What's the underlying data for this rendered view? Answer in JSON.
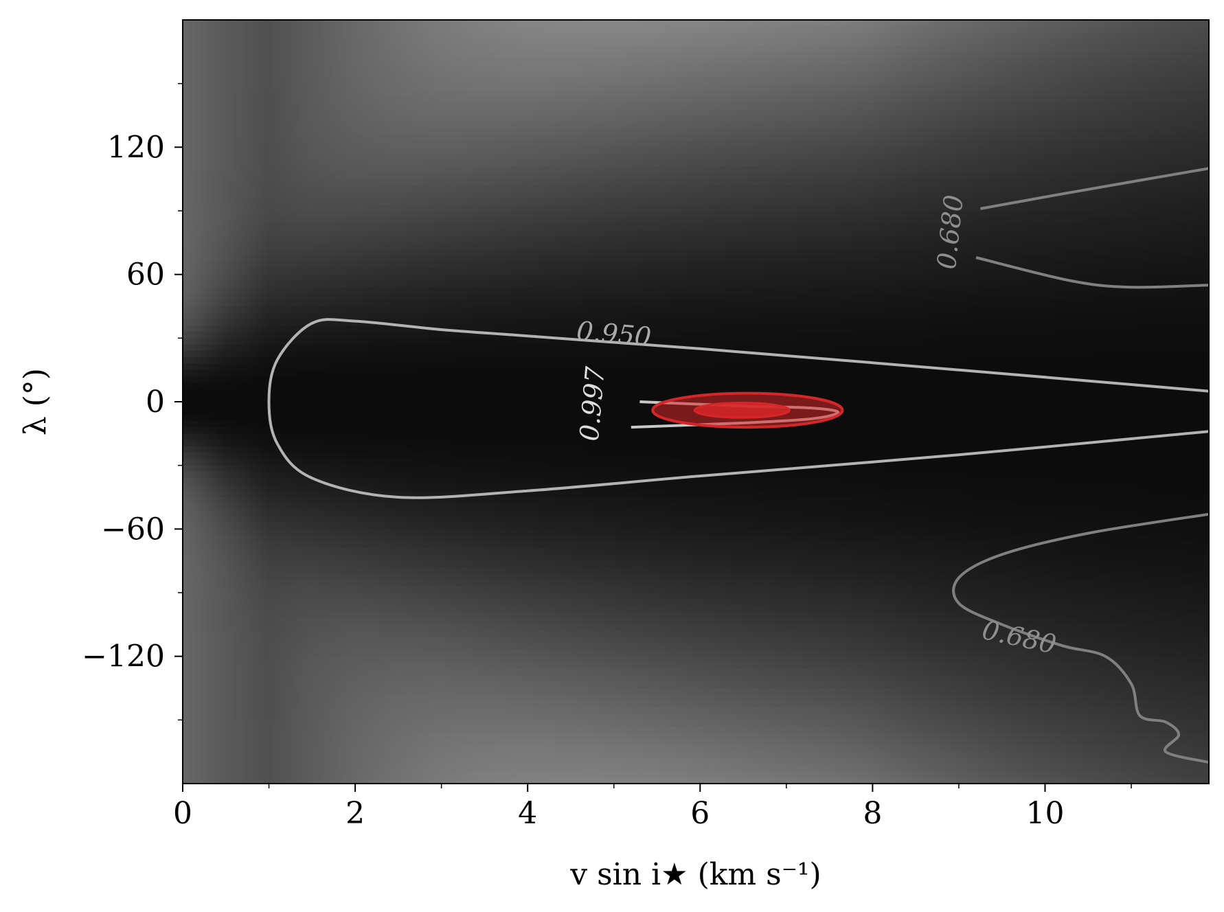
{
  "chart_data": {
    "type": "heatmap",
    "title": "",
    "xlabel": "v sin i★ (km s⁻¹)",
    "ylabel": "λ (°)",
    "xlim": [
      0,
      11.9
    ],
    "ylim": [
      -180,
      180
    ],
    "xticks": [
      0,
      2,
      4,
      6,
      8,
      10
    ],
    "xtick_labels": [
      "0",
      "2",
      "4",
      "6",
      "8",
      "10"
    ],
    "yticks": [
      -120,
      -60,
      0,
      60,
      120
    ],
    "ytick_labels": [
      "−120",
      "−60",
      "0",
      "60",
      "120"
    ],
    "colormap": "grayscale (black = high, white = low)",
    "grid": false,
    "contours": [
      {
        "level_label": "0.950",
        "color": "#b3b3b3",
        "paths": [
          [
            [
              11.9,
              5
            ],
            [
              9,
              15
            ],
            [
              6,
              25
            ],
            [
              4,
              31
            ],
            [
              3,
              34
            ],
            [
              2,
              38
            ],
            [
              1.5,
              37
            ],
            [
              1.1,
              20
            ],
            [
              1.0,
              0
            ],
            [
              1.1,
              -20
            ],
            [
              1.5,
              -36
            ],
            [
              2.5,
              -45
            ],
            [
              4,
              -42
            ],
            [
              6,
              -35
            ],
            [
              9,
              -25
            ],
            [
              11.9,
              -14
            ]
          ]
        ]
      },
      {
        "level_label": "0.997",
        "color": "#c8c8c8",
        "paths": [
          [
            [
              5.3,
              0
            ],
            [
              6.5,
              -2
            ],
            [
              7.3,
              -3
            ],
            [
              7.6,
              -5
            ],
            [
              7.3,
              -8
            ],
            [
              6.5,
              -10
            ],
            [
              5.2,
              -12
            ]
          ]
        ]
      },
      {
        "level_label": "0.680",
        "color": "#808080",
        "paths": [
          [
            [
              9.25,
              91
            ],
            [
              10.2,
              98
            ],
            [
              11.9,
              110
            ]
          ],
          [
            [
              9.2,
              68
            ],
            [
              10.3,
              57
            ],
            [
              11.0,
              54
            ],
            [
              11.9,
              55
            ]
          ],
          [
            [
              11.9,
              -53
            ],
            [
              10.5,
              -62
            ],
            [
              9.5,
              -72
            ],
            [
              9.0,
              -83
            ],
            [
              9.0,
              -95
            ],
            [
              9.5,
              -105
            ],
            [
              10.2,
              -115
            ],
            [
              10.7,
              -120
            ],
            [
              11.0,
              -133
            ],
            [
              11.1,
              -148
            ],
            [
              11.4,
              -151
            ],
            [
              11.55,
              -157
            ],
            [
              11.4,
              -165
            ],
            [
              11.9,
              -170
            ]
          ]
        ]
      }
    ],
    "best_fit_region": {
      "color": "#d62728",
      "center": [
        6.55,
        -4
      ],
      "ellipses": [
        {
          "half_width": 1.1,
          "half_height": 8
        },
        {
          "half_width": 0.55,
          "half_height": 3.5
        }
      ]
    },
    "intensity_model": {
      "peak_lambda_at_x0": 0,
      "ridge_slope_deg_per_kms": -0.8,
      "width_base_deg": 25,
      "width_scale_deg": 18,
      "note": "black along the ridge at lambda near 0, brightening with |lambda| and v sin i"
    }
  }
}
